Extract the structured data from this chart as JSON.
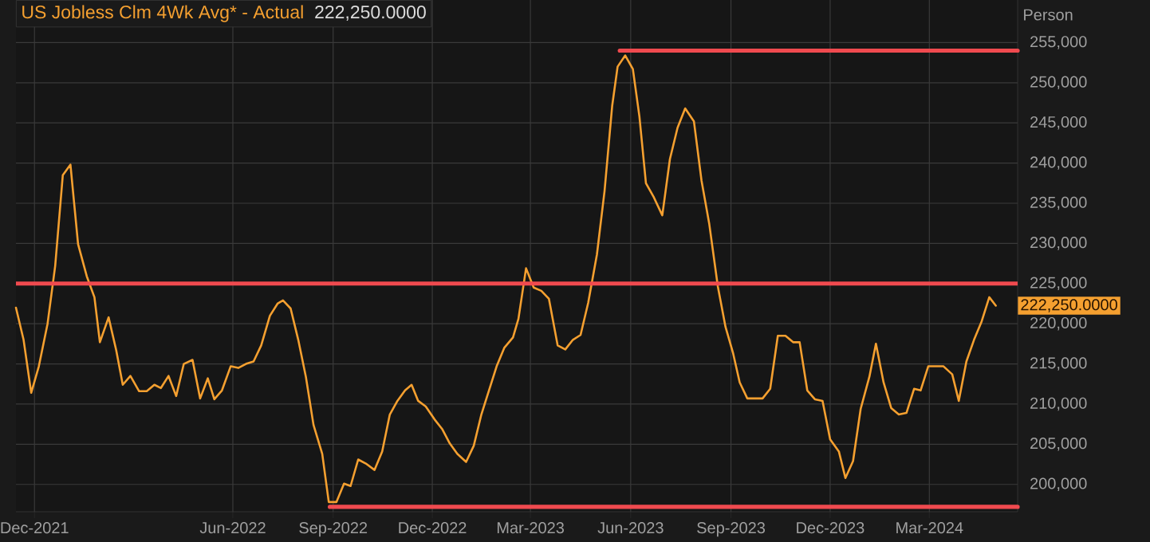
{
  "chart_data": {
    "type": "line",
    "title": "US Jobless Clm 4Wk Avg* - Actual",
    "subtitle": "222,250.0000",
    "ylabel": "Person",
    "xlim": [
      "2021-11-14",
      "2024-05-21"
    ],
    "ylim": [
      196600,
      260300
    ],
    "xticks": [
      {
        "value": "2021-12-01",
        "label": "Dec-2021"
      },
      {
        "value": "2022-06-01",
        "label": "Jun-2022"
      },
      {
        "value": "2022-09-01",
        "label": "Sep-2022"
      },
      {
        "value": "2022-12-01",
        "label": "Dec-2022"
      },
      {
        "value": "2023-03-01",
        "label": "Mar-2023"
      },
      {
        "value": "2023-06-01",
        "label": "Jun-2023"
      },
      {
        "value": "2023-09-01",
        "label": "Sep-2023"
      },
      {
        "value": "2023-12-01",
        "label": "Dec-2023"
      },
      {
        "value": "2024-03-01",
        "label": "Mar-2024"
      }
    ],
    "yticks": [
      {
        "value": 200000,
        "label": "200,000"
      },
      {
        "value": 205000,
        "label": "205,000"
      },
      {
        "value": 210000,
        "label": "210,000"
      },
      {
        "value": 215000,
        "label": "215,000"
      },
      {
        "value": 220000,
        "label": "220,000"
      },
      {
        "value": 225000,
        "label": "225,000"
      },
      {
        "value": 230000,
        "label": "230,000"
      },
      {
        "value": 235000,
        "label": "235,000"
      },
      {
        "value": 240000,
        "label": "240,000"
      },
      {
        "value": 245000,
        "label": "245,000"
      },
      {
        "value": 250000,
        "label": "250,000"
      },
      {
        "value": 255000,
        "label": "255,000"
      }
    ],
    "grid": true,
    "ref_lines": [
      {
        "axis": "y",
        "value": 225000,
        "color": "#f04a4f"
      }
    ],
    "annotations": [
      "222,250.0000"
    ],
    "series": [
      {
        "color": "#f5a030",
        "x": [
          "2021-11-14",
          "2021-11-21",
          "2021-11-28",
          "2021-12-05",
          "2021-12-13",
          "2021-12-20",
          "2021-12-27",
          "2022-01-03",
          "2022-01-10",
          "2022-01-18",
          "2022-01-25",
          "2022-01-30",
          "2022-02-07",
          "2022-02-14",
          "2022-02-20",
          "2022-02-27",
          "2022-03-07",
          "2022-03-14",
          "2022-03-21",
          "2022-03-27",
          "2022-04-03",
          "2022-04-10",
          "2022-04-17",
          "2022-04-25",
          "2022-05-02",
          "2022-05-09",
          "2022-05-15",
          "2022-05-22",
          "2022-05-30",
          "2022-06-06",
          "2022-06-13",
          "2022-06-20",
          "2022-06-27",
          "2022-07-05",
          "2022-07-12",
          "2022-07-17",
          "2022-07-24",
          "2022-07-31",
          "2022-08-07",
          "2022-08-14",
          "2022-08-22",
          "2022-08-28",
          "2022-09-04",
          "2022-09-11",
          "2022-09-17",
          "2022-09-24",
          "2022-10-01",
          "2022-10-09",
          "2022-10-16",
          "2022-10-23",
          "2022-10-30",
          "2022-11-06",
          "2022-11-12",
          "2022-11-18",
          "2022-11-25",
          "2022-12-03",
          "2022-12-10",
          "2022-12-17",
          "2022-12-24",
          "2023-01-01",
          "2023-01-08",
          "2023-01-15",
          "2023-01-22",
          "2023-01-29",
          "2023-02-05",
          "2023-02-13",
          "2023-02-18",
          "2023-02-25",
          "2023-03-04",
          "2023-03-11",
          "2023-03-18",
          "2023-03-26",
          "2023-04-02",
          "2023-04-09",
          "2023-04-16",
          "2023-04-23",
          "2023-05-01",
          "2023-05-08",
          "2023-05-15",
          "2023-05-20",
          "2023-05-27",
          "2023-06-03",
          "2023-06-09",
          "2023-06-15",
          "2023-06-22",
          "2023-06-30",
          "2023-07-07",
          "2023-07-14",
          "2023-07-21",
          "2023-07-29",
          "2023-08-05",
          "2023-08-12",
          "2023-08-20",
          "2023-08-27",
          "2023-09-03",
          "2023-09-09",
          "2023-09-16",
          "2023-09-23",
          "2023-09-30",
          "2023-10-07",
          "2023-10-14",
          "2023-10-21",
          "2023-10-28",
          "2023-11-03",
          "2023-11-10",
          "2023-11-17",
          "2023-11-24",
          "2023-12-01",
          "2023-12-09",
          "2023-12-15",
          "2023-12-22",
          "2023-12-29",
          "2024-01-06",
          "2024-01-12",
          "2024-01-19",
          "2024-01-26",
          "2024-02-02",
          "2024-02-09",
          "2024-02-16",
          "2024-02-22",
          "2024-02-29",
          "2024-03-07",
          "2024-03-14",
          "2024-03-22",
          "2024-03-28",
          "2024-04-04",
          "2024-04-11",
          "2024-04-18",
          "2024-04-25",
          "2024-05-01"
        ],
        "values": [
          222000,
          218000,
          211400,
          214700,
          220000,
          227200,
          238500,
          239800,
          229900,
          225900,
          223300,
          217700,
          220800,
          216700,
          212400,
          213500,
          211600,
          211600,
          212400,
          212000,
          213500,
          211000,
          215000,
          215500,
          210700,
          213200,
          210600,
          211700,
          214700,
          214500,
          215000,
          215300,
          217300,
          221000,
          222500,
          222900,
          221900,
          218000,
          213400,
          207400,
          203800,
          197800,
          197800,
          200100,
          199800,
          203100,
          202600,
          201800,
          204100,
          208700,
          210400,
          211700,
          212400,
          210400,
          209700,
          208100,
          206900,
          205100,
          203800,
          202800,
          204800,
          208700,
          211700,
          214700,
          217000,
          218300,
          220600,
          226900,
          224500,
          224100,
          223100,
          217300,
          216800,
          218000,
          218600,
          222600,
          228600,
          236500,
          247100,
          252000,
          253400,
          251700,
          245800,
          237500,
          235800,
          233500,
          240500,
          244400,
          246800,
          245200,
          237800,
          232500,
          224600,
          219600,
          216300,
          212700,
          210700,
          210700,
          210700,
          211900,
          218500,
          218500,
          217700,
          217700,
          211700,
          210600,
          210400,
          205600,
          204100,
          200800,
          202900,
          209400,
          213400,
          217500,
          212700,
          209500,
          208700,
          208900,
          211900,
          211700,
          214700,
          214700,
          214700,
          213700,
          210400,
          215300,
          218000,
          220300,
          223300,
          222250
        ]
      },
      {
        "type": "line",
        "color": "#f04a4f",
        "x": [
          "2023-05-22",
          "2024-05-21"
        ],
        "values": [
          254000,
          254000
        ]
      },
      {
        "type": "line",
        "color": "#f04a4f",
        "x": [
          "2022-08-29",
          "2024-05-21"
        ],
        "values": [
          197200,
          197200
        ]
      }
    ]
  }
}
